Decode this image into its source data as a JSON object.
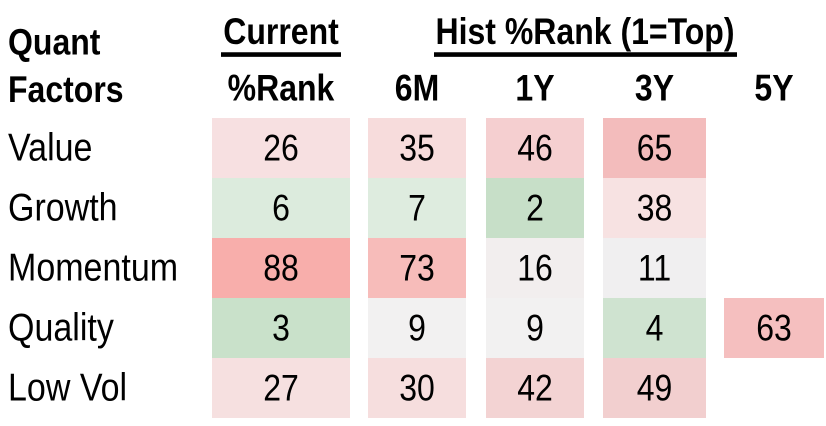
{
  "title": {
    "line1": "Quant",
    "line2": "Factors"
  },
  "header": {
    "current_group": "Current",
    "current_sub": "%Rank",
    "hist_group": "Hist %Rank (1=Top)",
    "hist_subs": [
      "6M",
      "1Y",
      "3Y",
      "5Y"
    ]
  },
  "rows": [
    {
      "label": "Value",
      "cells": [
        {
          "value": "26",
          "bg": "#f7e0e1"
        },
        {
          "value": "35",
          "bg": "#f7dcdc"
        },
        {
          "value": "46",
          "bg": "#f5cfd0"
        },
        {
          "value": "65",
          "bg": "#f3bcbc"
        },
        {
          "value": "",
          "bg": null
        }
      ]
    },
    {
      "label": "Growth",
      "cells": [
        {
          "value": "6",
          "bg": "#dcebdd"
        },
        {
          "value": "7",
          "bg": "#deecdf"
        },
        {
          "value": "2",
          "bg": "#c7dfc8"
        },
        {
          "value": "38",
          "bg": "#f7e2e2"
        },
        {
          "value": "",
          "bg": null
        }
      ]
    },
    {
      "label": "Momentum",
      "cells": [
        {
          "value": "88",
          "bg": "#f8aeab"
        },
        {
          "value": "73",
          "bg": "#f7bcba"
        },
        {
          "value": "16",
          "bg": "#f2eeee"
        },
        {
          "value": "11",
          "bg": "#f0eff0"
        },
        {
          "value": "",
          "bg": null
        }
      ]
    },
    {
      "label": "Quality",
      "cells": [
        {
          "value": "3",
          "bg": "#c9e1ca"
        },
        {
          "value": "9",
          "bg": "#f2f1f1"
        },
        {
          "value": "9",
          "bg": "#f2f1f1"
        },
        {
          "value": "4",
          "bg": "#cfe3d0"
        },
        {
          "value": "63",
          "bg": "#f5bfbf"
        }
      ]
    },
    {
      "label": "Low Vol",
      "cells": [
        {
          "value": "27",
          "bg": "#f6e0e0"
        },
        {
          "value": "30",
          "bg": "#f6dede"
        },
        {
          "value": "42",
          "bg": "#f3d3d3"
        },
        {
          "value": "49",
          "bg": "#f2cfcf"
        },
        {
          "value": "",
          "bg": null
        }
      ]
    }
  ],
  "chart_data": {
    "type": "heatmap",
    "title": "Quant Factors",
    "group_headers": [
      "Current",
      "Hist %Rank (1=Top)"
    ],
    "row_labels": [
      "Value",
      "Growth",
      "Momentum",
      "Quality",
      "Low Vol"
    ],
    "col_labels": [
      "Current %Rank",
      "6M",
      "1Y",
      "3Y",
      "5Y"
    ],
    "values": [
      [
        26,
        35,
        46,
        65,
        null
      ],
      [
        6,
        7,
        2,
        38,
        null
      ],
      [
        88,
        73,
        16,
        11,
        null
      ],
      [
        3,
        9,
        9,
        4,
        63
      ],
      [
        27,
        30,
        42,
        49,
        null
      ]
    ],
    "scale_note": "1=Top",
    "color_scale": {
      "low": "#c7dfc8",
      "mid": "#f1f1f1",
      "high": "#f8aeab",
      "meaning": "green = low percentile rank (near top), red = high percentile rank"
    },
    "legend_position": "none",
    "grid": false
  },
  "colors": {
    "text": "#000000",
    "underline": "#000000",
    "background": "#ffffff"
  }
}
